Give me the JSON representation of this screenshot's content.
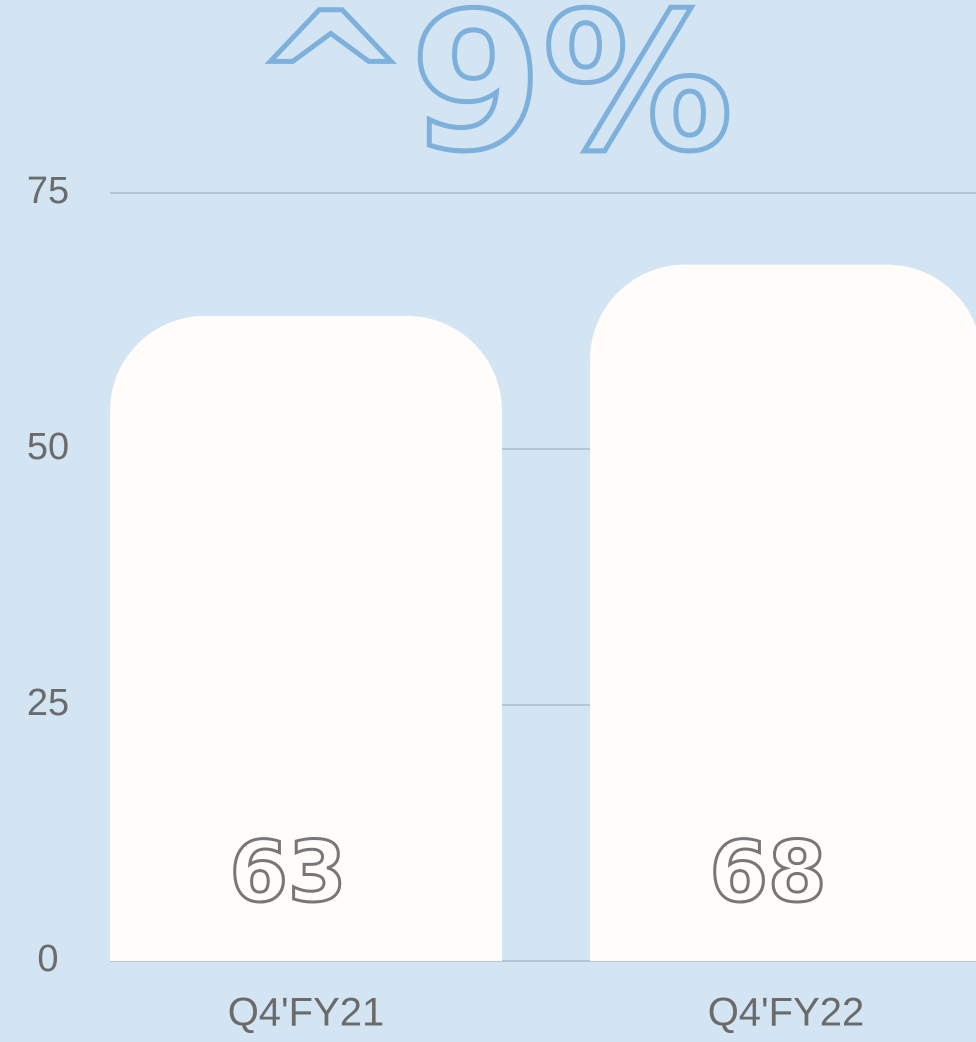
{
  "chart_data": {
    "type": "bar",
    "title": "^9%",
    "annotation": "39.93",
    "categories": [
      "Q4'FY21",
      "Q4'FY22"
    ],
    "values": [
      63,
      68
    ],
    "color": "#fffcfa",
    "ylim": [
      0,
      75
    ],
    "yticks": [
      0,
      25,
      50,
      75
    ],
    "grid": true
  }
}
